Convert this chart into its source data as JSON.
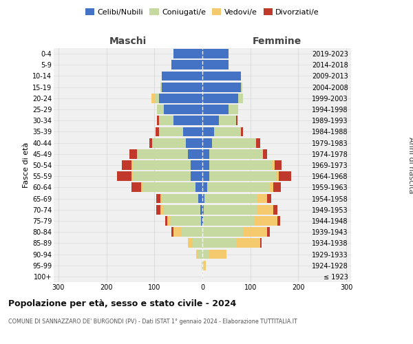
{
  "age_groups": [
    "100+",
    "95-99",
    "90-94",
    "85-89",
    "80-84",
    "75-79",
    "70-74",
    "65-69",
    "60-64",
    "55-59",
    "50-54",
    "45-49",
    "40-44",
    "35-39",
    "30-34",
    "25-29",
    "20-24",
    "15-19",
    "10-14",
    "5-9",
    "0-4"
  ],
  "birth_years": [
    "≤ 1923",
    "1924-1928",
    "1929-1933",
    "1934-1938",
    "1939-1943",
    "1944-1948",
    "1949-1953",
    "1954-1958",
    "1959-1963",
    "1964-1968",
    "1969-1973",
    "1974-1978",
    "1979-1983",
    "1984-1988",
    "1989-1993",
    "1994-1998",
    "1999-2003",
    "2004-2008",
    "2009-2013",
    "2014-2018",
    "2019-2023"
  ],
  "colors": {
    "celibi": "#4472C4",
    "coniugati": "#C5D9A0",
    "vedovi": "#F5C96E",
    "divorziati": "#C0392B"
  },
  "maschi": {
    "celibi": [
      0,
      0,
      0,
      0,
      0,
      3,
      5,
      8,
      15,
      25,
      25,
      30,
      35,
      40,
      60,
      80,
      90,
      85,
      85,
      65,
      60
    ],
    "coniugati": [
      0,
      2,
      8,
      20,
      45,
      65,
      75,
      75,
      110,
      120,
      120,
      105,
      70,
      50,
      30,
      15,
      8,
      3,
      0,
      0,
      0
    ],
    "vedovi": [
      0,
      0,
      5,
      10,
      15,
      5,
      8,
      5,
      3,
      3,
      3,
      2,
      0,
      0,
      0,
      0,
      8,
      0,
      0,
      0,
      0
    ],
    "divorziati": [
      0,
      0,
      0,
      0,
      5,
      5,
      8,
      8,
      20,
      30,
      20,
      15,
      5,
      8,
      5,
      0,
      0,
      0,
      0,
      0,
      0
    ]
  },
  "femmine": {
    "celibi": [
      0,
      0,
      0,
      0,
      0,
      2,
      3,
      5,
      10,
      15,
      15,
      15,
      20,
      25,
      35,
      55,
      75,
      80,
      80,
      55,
      55
    ],
    "coniugati": [
      0,
      2,
      15,
      70,
      85,
      105,
      110,
      110,
      130,
      140,
      130,
      110,
      90,
      55,
      35,
      20,
      10,
      3,
      0,
      0,
      0
    ],
    "vedovi": [
      0,
      5,
      35,
      50,
      50,
      50,
      35,
      20,
      8,
      5,
      5,
      2,
      2,
      0,
      0,
      0,
      0,
      0,
      0,
      0,
      0
    ],
    "divorziati": [
      0,
      0,
      0,
      3,
      5,
      5,
      8,
      8,
      15,
      25,
      15,
      8,
      8,
      5,
      3,
      0,
      0,
      0,
      0,
      0,
      0
    ]
  },
  "xlim": 310,
  "title": "Popolazione per età, sesso e stato civile - 2024",
  "subtitle": "COMUNE DI SANNAZZARO DE' BURGONDI (PV) - Dati ISTAT 1° gennaio 2024 - Elaborazione TUTTITALIA.IT",
  "xlabel_left": "Maschi",
  "xlabel_right": "Femmine",
  "ylabel_left": "Fasce di età",
  "ylabel_right": "Anni di nascita",
  "legend_labels": [
    "Celibi/Nubili",
    "Coniugati/e",
    "Vedovi/e",
    "Divorziati/e"
  ],
  "bg_color": "#ffffff",
  "plot_bg_color": "#f0f0f0",
  "grid_color": "#cccccc",
  "bar_height": 0.85
}
